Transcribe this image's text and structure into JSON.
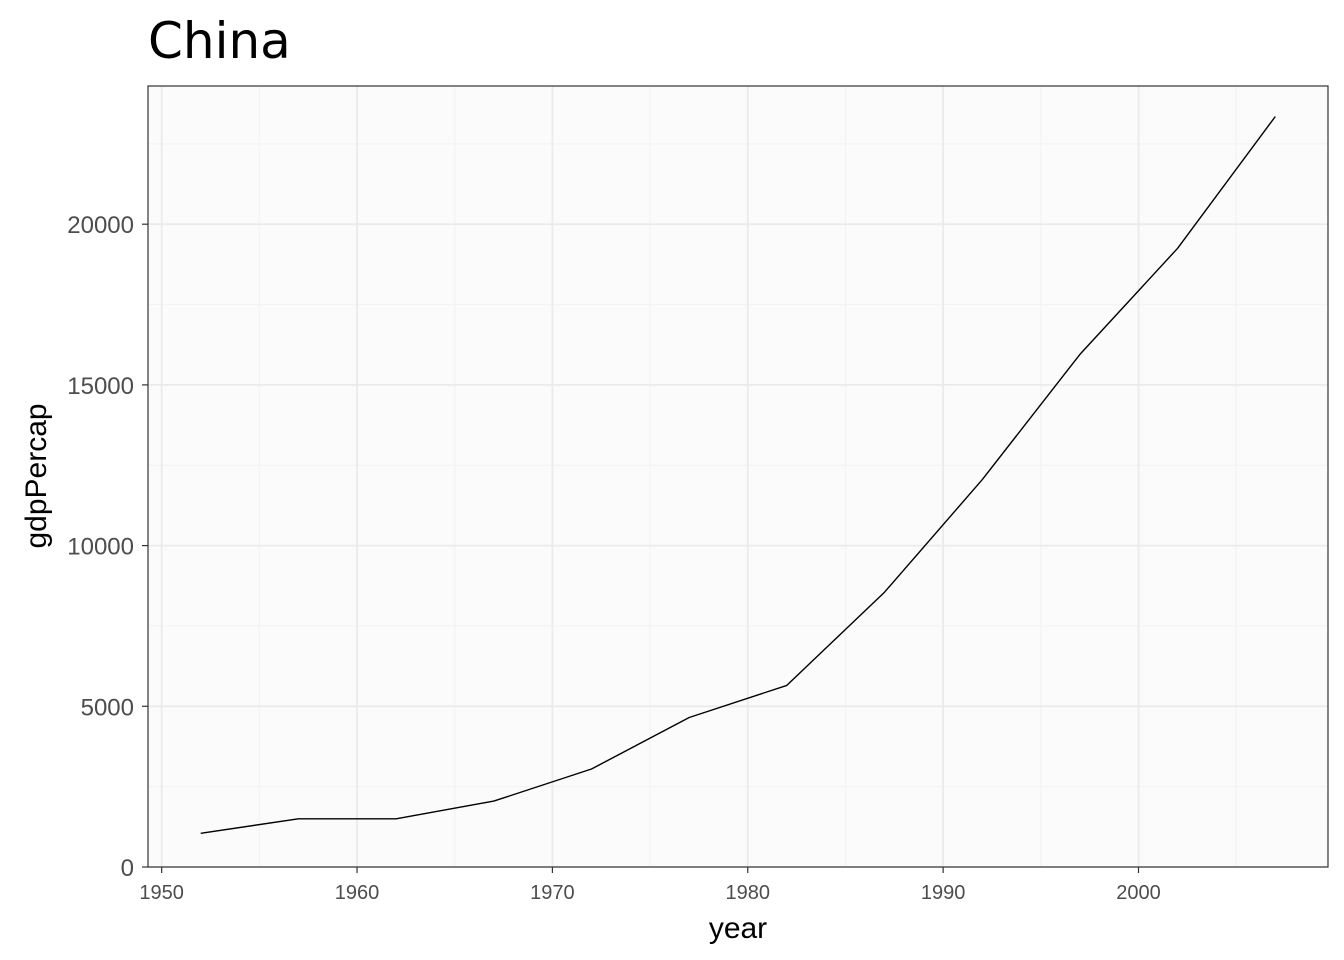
{
  "chart_data": {
    "type": "line",
    "title": "China",
    "xlabel": "year",
    "ylabel": "gdpPercap",
    "xlim": [
      1949.3,
      2009.7
    ],
    "ylim": [
      0,
      24300
    ],
    "x_ticks": [
      1950,
      1960,
      1970,
      1980,
      1990,
      2000
    ],
    "y_ticks": [
      0,
      5000,
      10000,
      15000,
      20000
    ],
    "grid": true,
    "legend": "none",
    "series": [
      {
        "color": "#000000",
        "x": [
          1952,
          1957,
          1962,
          1967,
          1972,
          1977,
          1982,
          1987,
          1992,
          1997,
          2002,
          2007
        ],
        "y": [
          1050,
          1500,
          1500,
          2050,
          3050,
          4650,
          5650,
          8550,
          12050,
          15950,
          19250,
          23350
        ]
      }
    ]
  },
  "colors": {
    "panel_background": "#fbfbfb",
    "grid_major": "#ebebeb",
    "grid_minor": "#f3f3f3",
    "panel_border": "#333333",
    "line": "#000000"
  }
}
